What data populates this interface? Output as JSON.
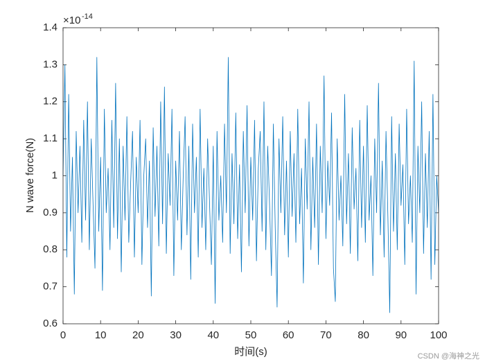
{
  "chart_data": {
    "type": "line",
    "x_label": "时间(s)",
    "y_label": "N wave force(N)",
    "y_multiplier": "×10",
    "y_exponent": "-14",
    "watermark": "CSDN @海神之光",
    "xlim": [
      0,
      100
    ],
    "xticks": [
      0,
      10,
      20,
      30,
      40,
      50,
      60,
      70,
      80,
      90,
      100
    ],
    "ylim": [
      0.6,
      1.4
    ],
    "yticks": [
      0.6,
      0.7,
      0.8,
      0.9,
      1,
      1.1,
      1.2,
      1.3,
      1.4
    ],
    "x": [
      0,
      0.5,
      1,
      1.5,
      2,
      2.5,
      3,
      3.5,
      4,
      4.5,
      5,
      5.5,
      6,
      6.5,
      7,
      7.5,
      8,
      8.5,
      9,
      9.5,
      10,
      10.5,
      11,
      11.5,
      12,
      12.5,
      13,
      13.5,
      14,
      14.5,
      15,
      15.5,
      16,
      16.5,
      17,
      17.5,
      18,
      18.5,
      19,
      19.5,
      20,
      20.5,
      21,
      21.5,
      22,
      22.5,
      23,
      23.5,
      24,
      24.5,
      25,
      25.5,
      26,
      26.5,
      27,
      27.5,
      28,
      28.5,
      29,
      29.5,
      30,
      30.5,
      31,
      31.5,
      32,
      32.5,
      33,
      33.5,
      34,
      34.5,
      35,
      35.5,
      36,
      36.5,
      37,
      37.5,
      38,
      38.5,
      39,
      39.5,
      40,
      40.5,
      41,
      41.5,
      42,
      42.5,
      43,
      43.5,
      44,
      44.5,
      45,
      45.5,
      46,
      46.5,
      47,
      47.5,
      48,
      48.5,
      49,
      49.5,
      50,
      50.5,
      51,
      51.5,
      52,
      52.5,
      53,
      53.5,
      54,
      54.5,
      55,
      55.5,
      56,
      56.5,
      57,
      57.5,
      58,
      58.5,
      59,
      59.5,
      60,
      60.5,
      61,
      61.5,
      62,
      62.5,
      63,
      63.5,
      64,
      64.5,
      65,
      65.5,
      66,
      66.5,
      67,
      67.5,
      68,
      68.5,
      69,
      69.5,
      70,
      70.5,
      71,
      71.5,
      72,
      72.5,
      73,
      73.5,
      74,
      74.5,
      75,
      75.5,
      76,
      76.5,
      77,
      77.5,
      78,
      78.5,
      79,
      79.5,
      80,
      80.5,
      81,
      81.5,
      82,
      82.5,
      83,
      83.5,
      84,
      84.5,
      85,
      85.5,
      86,
      86.5,
      87,
      87.5,
      88,
      88.5,
      89,
      89.5,
      90,
      90.5,
      91,
      91.5,
      92,
      92.5,
      93,
      93.5,
      94,
      94.5,
      95,
      95.5,
      96,
      96.5,
      97,
      97.5,
      98,
      98.5,
      99,
      99.5,
      100
    ],
    "series": [
      {
        "name": "N wave force",
        "color": "#0072bd",
        "values": [
          1.0,
          1.3,
          0.78,
          1.22,
          0.85,
          1.05,
          0.68,
          1.12,
          0.9,
          1.08,
          0.82,
          1.15,
          0.88,
          1.2,
          0.8,
          1.1,
          0.92,
          0.75,
          1.32,
          0.85,
          1.05,
          0.69,
          1.18,
          0.9,
          1.02,
          0.8,
          1.15,
          0.86,
          1.25,
          0.83,
          1.1,
          0.74,
          1.08,
          0.88,
          1.16,
          0.82,
          0.98,
          1.12,
          0.78,
          1.05,
          0.9,
          1.15,
          0.76,
          1.0,
          1.1,
          0.86,
          1.04,
          0.675,
          1.13,
          0.89,
          1.08,
          0.81,
          1.2,
          0.87,
          1.24,
          0.79,
          1.06,
          0.92,
          1.18,
          0.73,
          1.04,
          0.88,
          1.12,
          0.8,
          1.0,
          1.16,
          0.84,
          1.08,
          0.72,
          1.14,
          0.9,
          1.05,
          0.78,
          1.18,
          0.86,
          1.02,
          0.8,
          1.1,
          0.93,
          0.76,
          1.08,
          0.655,
          1.12,
          0.88,
          1.0,
          0.82,
          1.14,
          0.9,
          1.32,
          0.79,
          1.06,
          0.87,
          1.17,
          0.83,
          1.03,
          0.74,
          1.12,
          0.9,
          1.19,
          0.81,
          1.05,
          0.88,
          1.15,
          0.77,
          1.02,
          1.12,
          0.85,
          1.2,
          0.8,
          1.08,
          0.92,
          0.73,
          1.14,
          0.86,
          0.645,
          1.1,
          0.9,
          1.16,
          0.84,
          1.04,
          0.78,
          1.12,
          0.89,
          1.06,
          0.82,
          1.18,
          0.87,
          1.02,
          0.71,
          1.1,
          0.91,
          1.2,
          0.8,
          1.05,
          0.86,
          1.14,
          0.76,
          1.08,
          0.9,
          1.27,
          0.83,
          1.04,
          0.92,
          1.17,
          0.75,
          0.66,
          1.1,
          0.88,
          1.0,
          0.81,
          1.22,
          0.87,
          1.06,
          0.79,
          1.13,
          0.91,
          1.02,
          0.77,
          1.15,
          0.86,
          1.08,
          0.82,
          1.19,
          0.88,
          1.0,
          0.73,
          1.1,
          0.9,
          1.25,
          0.84,
          1.04,
          0.78,
          1.12,
          0.89,
          0.63,
          1.16,
          0.85,
          1.06,
          0.8,
          1.14,
          0.92,
          1.03,
          0.76,
          1.18,
          0.87,
          1.0,
          0.82,
          1.31,
          0.68,
          1.08,
          0.9,
          1.2,
          0.79,
          1.06,
          0.86,
          1.12,
          0.72,
          1.22,
          0.76,
          1.0,
          0.9
        ]
      }
    ]
  }
}
